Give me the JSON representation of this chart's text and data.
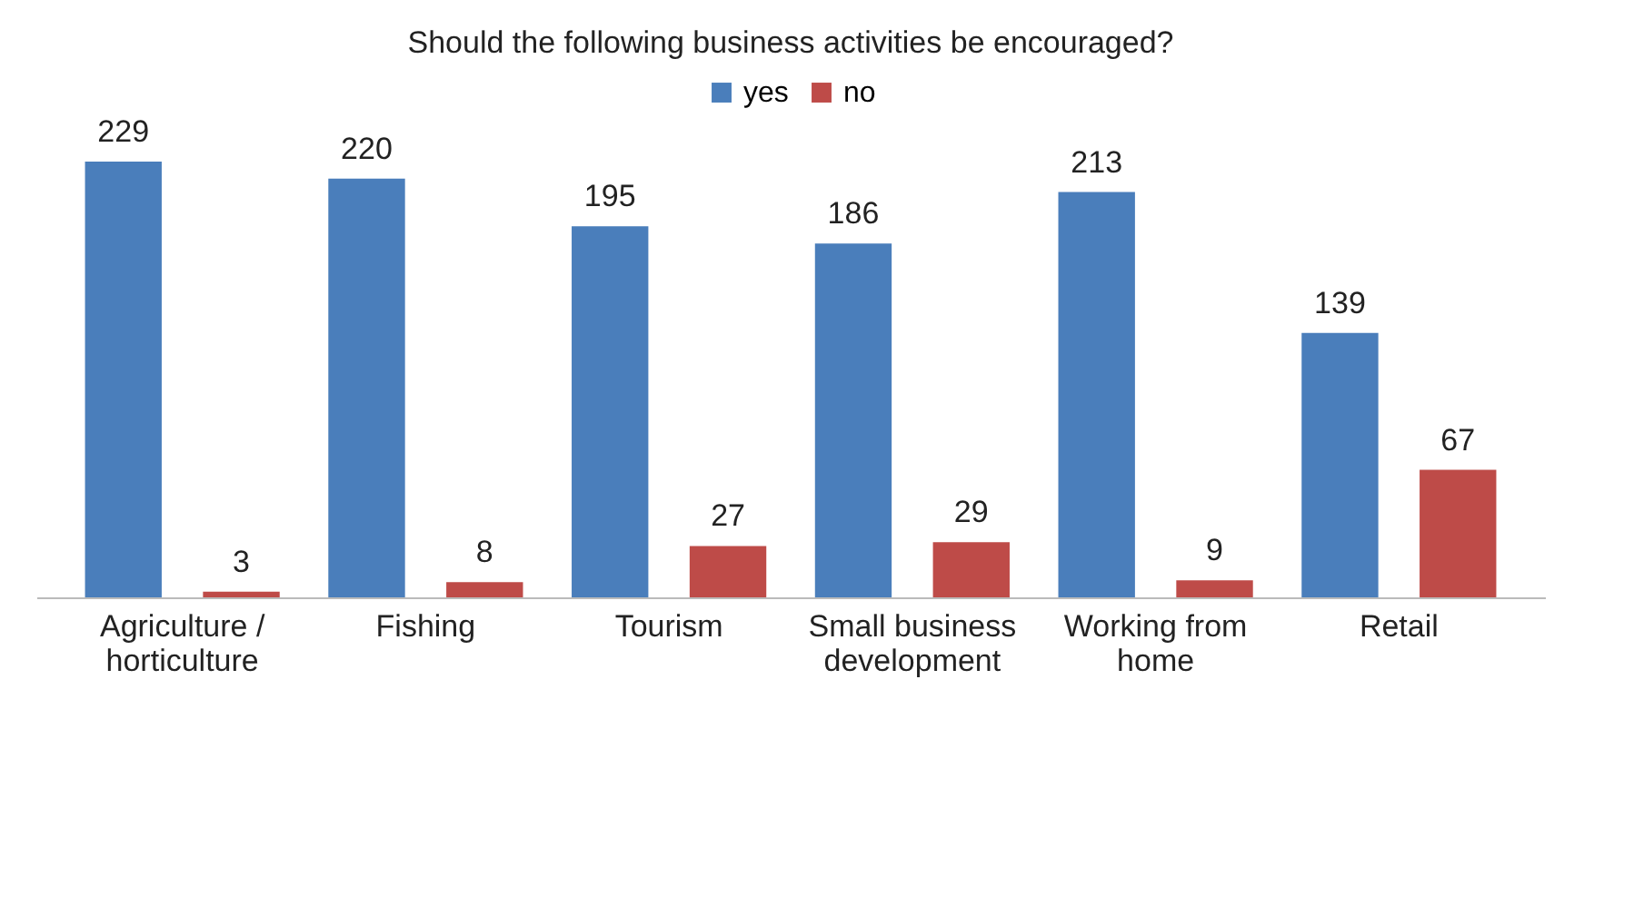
{
  "chart_data": {
    "type": "bar",
    "title": "Should the following business activities be encouraged?",
    "categories": [
      "Agriculture / horticulture",
      "Fishing",
      "Tourism",
      "Small business development",
      "Working from home",
      "Retail"
    ],
    "series": [
      {
        "name": "yes",
        "color": "#4a7ebb",
        "values": [
          229,
          220,
          195,
          186,
          213,
          139
        ]
      },
      {
        "name": "no",
        "color": "#be4b48",
        "values": [
          3,
          8,
          27,
          29,
          9,
          67
        ]
      }
    ],
    "data_labels": true,
    "legend": "top"
  }
}
